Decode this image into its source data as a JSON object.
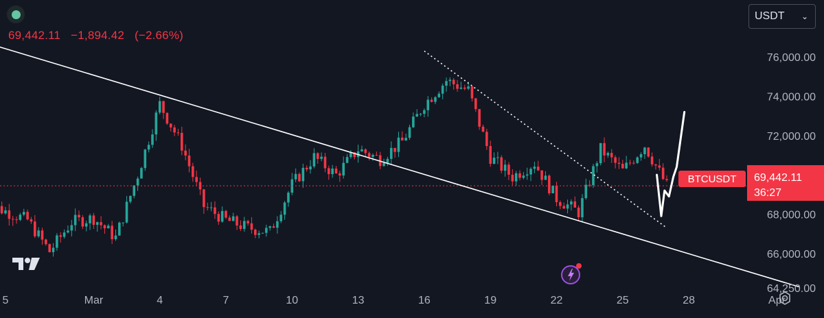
{
  "header": {
    "last_price": "69,442.11",
    "change": "−1,894.42",
    "change_pct": "(−2.66%)",
    "currency": "USDT"
  },
  "price_tag": {
    "symbol": "BTCUSDT",
    "price": "69,442.11",
    "countdown": "36:27"
  },
  "icons": {
    "top_left": "status-dot-icon",
    "bottom_left": "tradingview-logo-icon",
    "bottom_right": "settings-gear-icon",
    "floating": "lightning-alert-icon"
  },
  "colors": {
    "background": "#131722",
    "up": "#26a69a",
    "down": "#f23645",
    "trendline": "#ffffff",
    "axis_text": "#b2b5be"
  },
  "chart_data": {
    "type": "candlestick",
    "title": "",
    "x_tick_labels": [
      "5",
      "Mar",
      "4",
      "7",
      "10",
      "13",
      "16",
      "19",
      "22",
      "25",
      "28",
      "Apr"
    ],
    "y_tick_labels": [
      "76,000.00",
      "74,000.00",
      "72,000.00",
      "70,000.00",
      "68,000.00",
      "66,000.00",
      "64,250.00"
    ],
    "ylim": [
      63900,
      78200
    ],
    "grid": false,
    "last_price": 69442.11,
    "close_path": [
      {
        "date": "Feb 25",
        "price": 68600
      },
      {
        "date": "Feb 27",
        "price": 67700
      },
      {
        "date": "Feb 28",
        "price": 66100
      },
      {
        "date": "Feb 29",
        "price": 67600
      },
      {
        "date": "Mar 1",
        "price": 67800
      },
      {
        "date": "Mar 2",
        "price": 66800
      },
      {
        "date": "Mar 3",
        "price": 70000
      },
      {
        "date": "Mar 4",
        "price": 73600
      },
      {
        "date": "Mar 5",
        "price": 71500
      },
      {
        "date": "Mar 6",
        "price": 68400
      },
      {
        "date": "Mar 7",
        "price": 67700
      },
      {
        "date": "Mar 8",
        "price": 67300
      },
      {
        "date": "Mar 9",
        "price": 67100
      },
      {
        "date": "Mar 10",
        "price": 69500
      },
      {
        "date": "Mar 11",
        "price": 70900
      },
      {
        "date": "Mar 12",
        "price": 70000
      },
      {
        "date": "Mar 13",
        "price": 71300
      },
      {
        "date": "Mar 14",
        "price": 70800
      },
      {
        "date": "Mar 15",
        "price": 71700
      },
      {
        "date": "Mar 16",
        "price": 73600
      },
      {
        "date": "Mar 17",
        "price": 74800
      },
      {
        "date": "Mar 18",
        "price": 74300
      },
      {
        "date": "Mar 19",
        "price": 70900
      },
      {
        "date": "Mar 20",
        "price": 69900
      },
      {
        "date": "Mar 21",
        "price": 70600
      },
      {
        "date": "Mar 22",
        "price": 68800
      },
      {
        "date": "Mar 23",
        "price": 68100
      },
      {
        "date": "Mar 24",
        "price": 71300
      },
      {
        "date": "Mar 25",
        "price": 70200
      },
      {
        "date": "Mar 26",
        "price": 71500
      },
      {
        "date": "Mar 27",
        "price": 69442.11
      }
    ],
    "annotations": [
      {
        "kind": "trendline",
        "style": "solid",
        "from": {
          "date": "Feb 21",
          "price": 78100
        },
        "to": {
          "date": "Apr 2",
          "price": 64300
        }
      },
      {
        "kind": "trendline",
        "style": "dotted",
        "from": {
          "date": "Mar 16",
          "price": 76300
        },
        "to": {
          "date": "Mar 27",
          "price": 67300
        }
      },
      {
        "kind": "freehand_projection",
        "style": "solid",
        "points": [
          {
            "date": "Mar 27",
            "price": 70000
          },
          {
            "date": "Mar 27",
            "price": 67900
          },
          {
            "date": "Mar 28",
            "price": 69200
          },
          {
            "date": "Mar 28",
            "price": 68900
          },
          {
            "date": "Mar 28",
            "price": 69900
          },
          {
            "date": "Mar 29",
            "price": 70400
          },
          {
            "date": "Mar 29",
            "price": 73200
          }
        ]
      }
    ]
  }
}
